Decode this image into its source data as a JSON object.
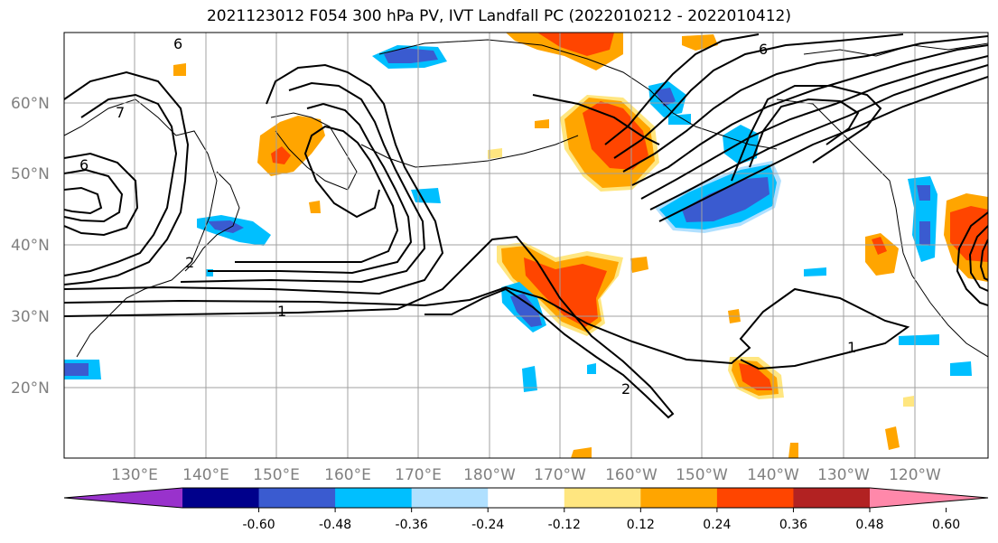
{
  "title": "2021123012 F054 300 hPa PV, IVT Landfall PC (2022010212 - 2022010412)",
  "map": {
    "lat_labels": [
      "60°N",
      "50°N",
      "40°N",
      "30°N",
      "20°N"
    ],
    "lon_labels": [
      "130°E",
      "140°E",
      "150°E",
      "160°E",
      "170°E",
      "180°W",
      "170°W",
      "160°W",
      "150°W",
      "140°W",
      "130°W",
      "120°W"
    ],
    "contour_labels": [
      "6",
      "7",
      "6",
      "2",
      "1",
      "1",
      "2",
      "6"
    ],
    "gridline_color": "#a0a0a0",
    "axis_label_color": "#808080"
  },
  "colorbar": {
    "colors": [
      "#9932CC",
      "#00008B",
      "#3A5BD0",
      "#00BFFF",
      "#B0E0FF",
      "#FFFFFF",
      "#FFE680",
      "#FFA500",
      "#FF4500",
      "#B22222",
      "#FF88AA"
    ],
    "tick_labels": [
      "-0.60",
      "-0.48",
      "-0.36",
      "-0.24",
      "-0.12",
      "0.12",
      "0.24",
      "0.36",
      "0.48",
      "0.60"
    ]
  },
  "colors": {
    "positive_strong": "#FF4500",
    "positive_mid": "#FFA500",
    "positive_weak": "#FFE680",
    "negative_strong": "#3A5BD0",
    "negative_mid": "#00BFFF",
    "negative_weak": "#B0E0FF",
    "contour": "#000000"
  }
}
